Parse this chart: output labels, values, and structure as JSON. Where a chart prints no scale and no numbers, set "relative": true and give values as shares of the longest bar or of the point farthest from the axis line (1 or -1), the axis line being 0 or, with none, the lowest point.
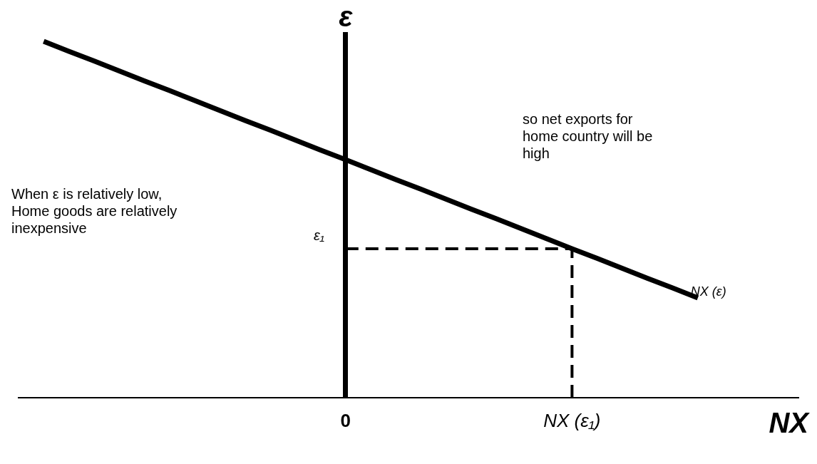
{
  "chart_data": {
    "type": "line",
    "relative": true,
    "xlabel": "NX",
    "ylabel": "ε",
    "marker": "none",
    "legend": false,
    "grid": false,
    "categories": [
      null,
      null,
      null,
      null,
      null,
      null,
      null,
      null,
      null,
      null,
      null,
      null,
      null,
      "0",
      null,
      null,
      null,
      null,
      null,
      null,
      null,
      null,
      "NX (ε₁)",
      null,
      null,
      null,
      null,
      null,
      null,
      null,
      null,
      null
    ],
    "series": [
      {
        "name": "NX (ε)",
        "color": "#000000",
        "line_style": "solid",
        "values": [
          null,
          1,
          0.972,
          0.945,
          0.917,
          0.889,
          0.862,
          0.834,
          0.806,
          0.778,
          0.751,
          0.723,
          0.695,
          0.668,
          0.64,
          0.612,
          0.585,
          0.557,
          0.529,
          0.502,
          0.474,
          0.446,
          0.418,
          0.391,
          0.363,
          0.335,
          0.308,
          0.28,
          null,
          null,
          null,
          null
        ]
      },
      {
        "color": "#000000",
        "line_style": "dashed",
        "values": [
          null,
          null,
          null,
          null,
          null,
          null,
          null,
          null,
          null,
          null,
          null,
          null,
          null,
          0.418,
          0.418,
          0.418,
          0.418,
          0.418,
          0.418,
          0.418,
          0.418,
          0.418,
          0.418,
          null,
          null,
          null,
          null,
          null,
          null,
          null,
          null,
          null
        ]
      }
    ],
    "ref_lines": [
      {
        "axis": "x",
        "value": "NX (ε₁)",
        "color": "#000000",
        "line_style": "dashed"
      }
    ],
    "annotations": [
      "When ε  is relatively low, Home goods are relatively inexpensive",
      "so net exports for home country will be high",
      "ε₁"
    ]
  }
}
